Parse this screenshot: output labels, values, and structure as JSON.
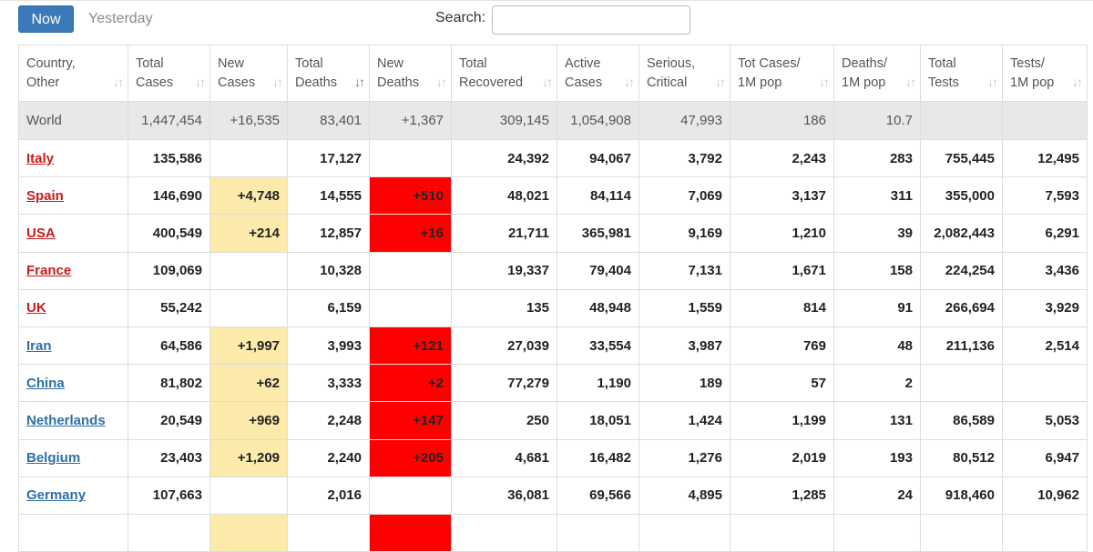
{
  "toolbar": {
    "now_label": "Now",
    "yesterday_label": "Yesterday",
    "search_label": "Search:",
    "search_value": ""
  },
  "columns": [
    {
      "line1": "Country,",
      "line2": "Other"
    },
    {
      "line1": "Total",
      "line2": "Cases"
    },
    {
      "line1": "New",
      "line2": "Cases"
    },
    {
      "line1": "Total",
      "line2": "Deaths"
    },
    {
      "line1": "New",
      "line2": "Deaths"
    },
    {
      "line1": "Total",
      "line2": "Recovered"
    },
    {
      "line1": "Active",
      "line2": "Cases"
    },
    {
      "line1": "Serious,",
      "line2": "Critical"
    },
    {
      "line1": "Tot Cases/",
      "line2": "1M pop"
    },
    {
      "line1": "Deaths/",
      "line2": "1M pop"
    },
    {
      "line1": "Total",
      "line2": "Tests"
    },
    {
      "line1": "Tests/",
      "line2": "1M pop"
    }
  ],
  "sort_icon": "sort-icon",
  "world": [
    "World",
    "1,447,454",
    "+16,535",
    "83,401",
    "+1,367",
    "309,145",
    "1,054,908",
    "47,993",
    "186",
    "10.7",
    "",
    ""
  ],
  "rows": [
    {
      "color": "red",
      "cells": [
        "Italy",
        "135,586",
        "",
        "17,127",
        "",
        "24,392",
        "94,067",
        "3,792",
        "2,243",
        "283",
        "755,445",
        "12,495"
      ]
    },
    {
      "color": "red",
      "cells": [
        "Spain",
        "146,690",
        "+4,748",
        "14,555",
        "+510",
        "48,021",
        "84,114",
        "7,069",
        "3,137",
        "311",
        "355,000",
        "7,593"
      ]
    },
    {
      "color": "red",
      "cells": [
        "USA",
        "400,549",
        "+214",
        "12,857",
        "+16",
        "21,711",
        "365,981",
        "9,169",
        "1,210",
        "39",
        "2,082,443",
        "6,291"
      ]
    },
    {
      "color": "red",
      "cells": [
        "France",
        "109,069",
        "",
        "10,328",
        "",
        "19,337",
        "79,404",
        "7,131",
        "1,671",
        "158",
        "224,254",
        "3,436"
      ]
    },
    {
      "color": "red",
      "cells": [
        "UK",
        "55,242",
        "",
        "6,159",
        "",
        "135",
        "48,948",
        "1,559",
        "814",
        "91",
        "266,694",
        "3,929"
      ]
    },
    {
      "color": "blue",
      "cells": [
        "Iran",
        "64,586",
        "+1,997",
        "3,993",
        "+121",
        "27,039",
        "33,554",
        "3,987",
        "769",
        "48",
        "211,136",
        "2,514"
      ]
    },
    {
      "color": "blue",
      "cells": [
        "China",
        "81,802",
        "+62",
        "3,333",
        "+2",
        "77,279",
        "1,190",
        "189",
        "57",
        "2",
        "",
        ""
      ]
    },
    {
      "color": "blue",
      "cells": [
        "Netherlands",
        "20,549",
        "+969",
        "2,248",
        "+147",
        "250",
        "18,051",
        "1,424",
        "1,199",
        "131",
        "86,589",
        "5,053"
      ]
    },
    {
      "color": "blue",
      "cells": [
        "Belgium",
        "23,403",
        "+1,209",
        "2,240",
        "+205",
        "4,681",
        "16,482",
        "1,276",
        "2,019",
        "193",
        "80,512",
        "6,947"
      ]
    },
    {
      "color": "blue",
      "cells": [
        "Germany",
        "107,663",
        "",
        "2,016",
        "",
        "36,081",
        "69,566",
        "4,895",
        "1,285",
        "24",
        "918,460",
        "10,962"
      ]
    }
  ],
  "colors": {
    "now_button": "#3a7ab8",
    "new_cases_highlight": "#fbeaaa",
    "new_deaths_highlight": "#ff0000",
    "link_red": "#c81b1b",
    "link_blue": "#2f6fa7",
    "world_row": "#e8e8e8"
  }
}
